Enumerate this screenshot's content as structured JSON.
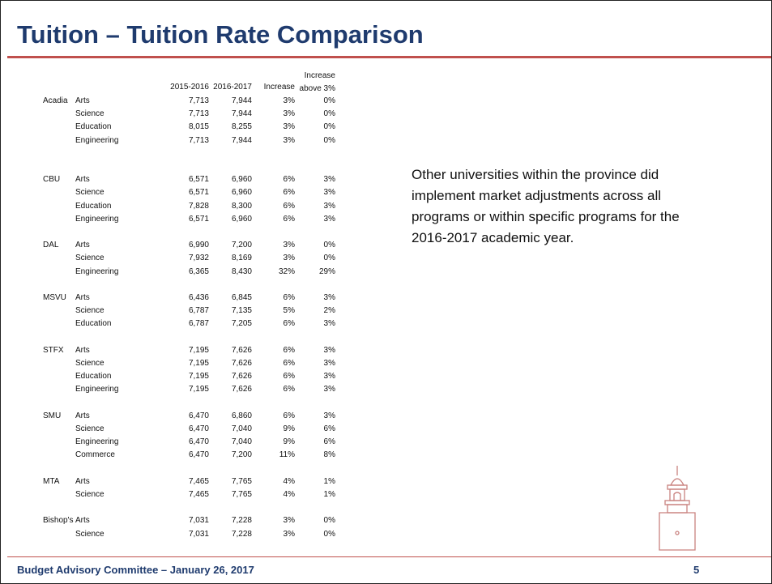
{
  "header": {
    "title": "Tuition – Tuition Rate Comparison"
  },
  "table": {
    "columns": [
      "2015-2016",
      "2016-2017",
      "Increase",
      "Increase above 3%"
    ],
    "groups": [
      {
        "name": "Acadia",
        "rows": [
          [
            "Arts",
            "7,713",
            "7,944",
            "3%",
            "0%"
          ],
          [
            "Science",
            "7,713",
            "7,944",
            "3%",
            "0%"
          ],
          [
            "Education",
            "8,015",
            "8,255",
            "3%",
            "0%"
          ],
          [
            "Engineering",
            "7,713",
            "7,944",
            "3%",
            "0%"
          ]
        ]
      },
      {
        "name": "CBU",
        "rows": [
          [
            "Arts",
            "6,571",
            "6,960",
            "6%",
            "3%"
          ],
          [
            "Science",
            "6,571",
            "6,960",
            "6%",
            "3%"
          ],
          [
            "Education",
            "7,828",
            "8,300",
            "6%",
            "3%"
          ],
          [
            "Engineering",
            "6,571",
            "6,960",
            "6%",
            "3%"
          ]
        ]
      },
      {
        "name": "DAL",
        "rows": [
          [
            "Arts",
            "6,990",
            "7,200",
            "3%",
            "0%"
          ],
          [
            "Science",
            "7,932",
            "8,169",
            "3%",
            "0%"
          ],
          [
            "Engineering",
            "6,365",
            "8,430",
            "32%",
            "29%"
          ]
        ]
      },
      {
        "name": "MSVU",
        "rows": [
          [
            "Arts",
            "6,436",
            "6,845",
            "6%",
            "3%"
          ],
          [
            "Science",
            "6,787",
            "7,135",
            "5%",
            "2%"
          ],
          [
            "Education",
            "6,787",
            "7,205",
            "6%",
            "3%"
          ]
        ]
      },
      {
        "name": "STFX",
        "rows": [
          [
            "Arts",
            "7,195",
            "7,626",
            "6%",
            "3%"
          ],
          [
            "Science",
            "7,195",
            "7,626",
            "6%",
            "3%"
          ],
          [
            "Education",
            "7,195",
            "7,626",
            "6%",
            "3%"
          ],
          [
            "Engineering",
            "7,195",
            "7,626",
            "6%",
            "3%"
          ]
        ]
      },
      {
        "name": "SMU",
        "rows": [
          [
            "Arts",
            "6,470",
            "6,860",
            "6%",
            "3%"
          ],
          [
            "Science",
            "6,470",
            "7,040",
            "9%",
            "6%"
          ],
          [
            "Engineering",
            "6,470",
            "7,040",
            "9%",
            "6%"
          ],
          [
            "Commerce",
            "6,470",
            "7,200",
            "11%",
            "8%"
          ]
        ]
      },
      {
        "name": "MTA",
        "rows": [
          [
            "Arts",
            "7,465",
            "7,765",
            "4%",
            "1%"
          ],
          [
            "Science",
            "7,465",
            "7,765",
            "4%",
            "1%"
          ]
        ]
      },
      {
        "name": "Bishop's",
        "rows": [
          [
            "Arts",
            "7,031",
            "7,228",
            "3%",
            "0%"
          ],
          [
            "Science",
            "7,031",
            "7,228",
            "3%",
            "0%"
          ]
        ]
      }
    ]
  },
  "body": {
    "text": "Other universities within the province did implement market adjustments across all programs or within specific programs for the 2016-2017 academic year."
  },
  "footer": {
    "text": "Budget Advisory Committee – January 26, 2017",
    "page": "5"
  }
}
